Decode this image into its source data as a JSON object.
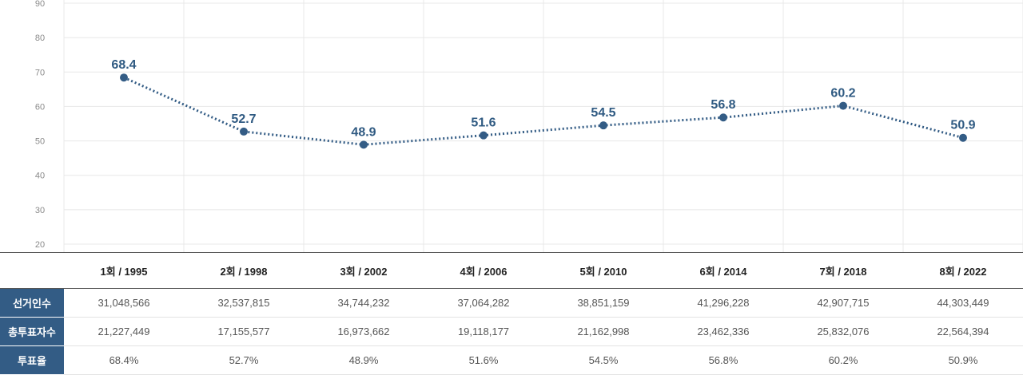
{
  "chart_data": {
    "type": "line",
    "categories": [
      "1회 / 1995",
      "2회 / 1998",
      "3회 / 2002",
      "4회 / 2006",
      "5회 / 2010",
      "6회 / 2014",
      "7회 / 2018",
      "8회 / 2022"
    ],
    "series": [
      {
        "values": [
          68.4,
          52.7,
          48.9,
          51.6,
          54.5,
          56.8,
          60.2,
          50.9
        ],
        "labels": [
          "68.4",
          "52.7",
          "48.9",
          "51.6",
          "54.5",
          "56.8",
          "60.2",
          "50.9"
        ],
        "color": "#335c85"
      }
    ],
    "ylim": [
      20,
      90
    ],
    "yticks": [
      "90",
      "80",
      "70",
      "60",
      "50",
      "40",
      "30",
      "20"
    ],
    "ytick_values": [
      90,
      80,
      70,
      60,
      50,
      40,
      30,
      20
    ],
    "grid": true,
    "line_style": "dotted"
  },
  "table": {
    "header_cells": [
      "1회 / 1995",
      "2회 / 1998",
      "3회 / 2002",
      "4회 / 2006",
      "5회 / 2010",
      "6회 / 2014",
      "7회 / 2018",
      "8회 / 2022"
    ],
    "rows": [
      {
        "label": "선거인수",
        "values": [
          "31,048,566",
          "32,537,815",
          "34,744,232",
          "37,064,282",
          "38,851,159",
          "41,296,228",
          "42,907,715",
          "44,303,449"
        ]
      },
      {
        "label": "총투표자수",
        "values": [
          "21,227,449",
          "17,155,577",
          "16,973,662",
          "19,118,177",
          "21,162,998",
          "23,462,336",
          "25,832,076",
          "22,564,394"
        ]
      },
      {
        "label": "투표율",
        "values": [
          "68.4%",
          "52.7%",
          "48.9%",
          "51.6%",
          "54.5%",
          "56.8%",
          "60.2%",
          "50.9%"
        ]
      }
    ]
  },
  "colors": {
    "accent": "#335c85",
    "label": "#2f5a82",
    "grid": "#e8e8e8"
  }
}
